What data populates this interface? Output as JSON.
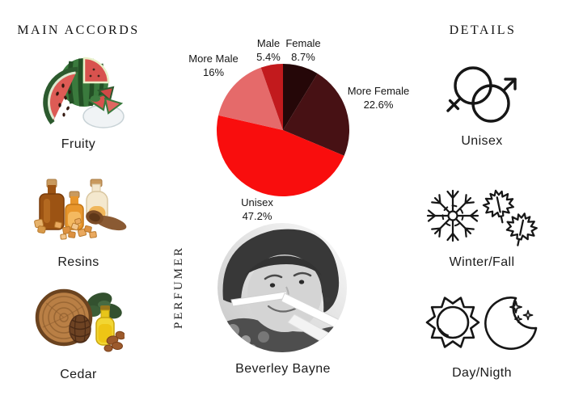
{
  "page": {
    "background": "#ffffff"
  },
  "main_accords": {
    "header": "MAIN ACCORDS",
    "items": [
      {
        "label": "Fruity",
        "icon": "watermelon-image"
      },
      {
        "label": "Resins",
        "icon": "resin-bottles-image"
      },
      {
        "label": "Cedar",
        "icon": "cedar-wood-image"
      }
    ]
  },
  "details": {
    "header": "DETAILS",
    "items": [
      {
        "label": "Unisex",
        "icon": "unisex-gender-icon"
      },
      {
        "label": "Winter/Fall",
        "icon": "snowflake-maple-leaves-icon"
      },
      {
        "label": "Day/Nigth",
        "icon": "sun-moon-icon"
      }
    ]
  },
  "perfumer": {
    "section_label": "PERFUMER",
    "name": "Beverley Bayne",
    "photo": "black-and-white-portrait"
  },
  "chart_data": {
    "type": "pie",
    "title": "",
    "start_angle_deg": 0,
    "direction": "clockwise",
    "legend_position": "labels-around",
    "slices": [
      {
        "label": "Female",
        "value": 8.7,
        "pct_text": "8.7%",
        "color": "#250708"
      },
      {
        "label": "More Female",
        "value": 22.6,
        "pct_text": "22.6%",
        "color": "#471114"
      },
      {
        "label": "Unisex",
        "value": 47.2,
        "pct_text": "47.2%",
        "color": "#f90d0d"
      },
      {
        "label": "More Male",
        "value": 16,
        "pct_text": "16%",
        "color": "#e56a6a"
      },
      {
        "label": "Male",
        "value": 5.4,
        "pct_text": "5.4%",
        "color": "#c21a1d"
      }
    ]
  }
}
